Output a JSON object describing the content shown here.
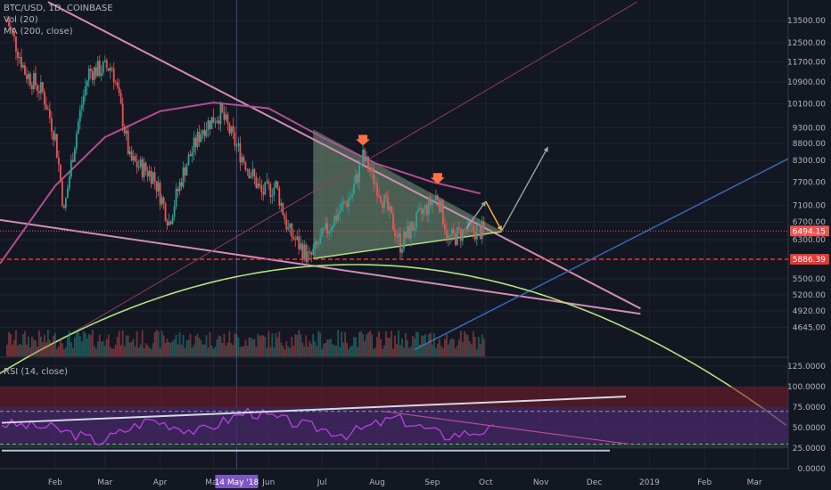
{
  "legend": {
    "symbol": "BTC/USD, 1D, COINBASE",
    "vol": "Vol (20)",
    "ma": "MA (200, close)",
    "rsi": "RSI (14, close)"
  },
  "cursor_date_label": "14 May '18",
  "price_axis": {
    "ticks": [
      13500,
      12500,
      11700,
      10900,
      10100,
      9300,
      8800,
      8300,
      7700,
      7100,
      6700,
      6300,
      5500,
      5200,
      4920,
      4645
    ],
    "tick_labels": [
      "13500.00",
      "12500.00",
      "11700.00",
      "10900.00",
      "10100.00",
      "9300.00",
      "8800.00",
      "8300.00",
      "7700.00",
      "7100.00",
      "6700.00",
      "6300.00",
      "5500.00",
      "5200.00",
      "4920.00",
      "4645.00"
    ],
    "current_price": "6494.15",
    "support_price": "5886.39",
    "colors": {
      "current": "#ef5350",
      "support": "#e53935"
    }
  },
  "rsi_axis": {
    "tick_labels": [
      "125.0000",
      "100.0000",
      "75.0000",
      "50.0000",
      "25.0000",
      "0.0000"
    ],
    "ticks": [
      125,
      100,
      75,
      50,
      25,
      0
    ]
  },
  "time_axis": {
    "labels": [
      "Feb",
      "Mar",
      "Apr",
      "May",
      "Jun",
      "Jul",
      "Aug",
      "Sep",
      "Oct",
      "Nov",
      "Dec",
      "2019",
      "Feb",
      "Mar"
    ]
  },
  "chart_data": {
    "type": "candlestick",
    "symbol": "BTC/USD",
    "interval": "1D",
    "x_range": [
      "2018-01-01",
      "2019-03-20"
    ],
    "y_log_scale": true,
    "ylim": [
      4200,
      14500
    ],
    "close_path": [
      [
        "2018-01-05",
        13500
      ],
      [
        "2018-01-15",
        11300
      ],
      [
        "2018-01-25",
        10500
      ],
      [
        "2018-02-01",
        9000
      ],
      [
        "2018-02-06",
        6900
      ],
      [
        "2018-02-15",
        9800
      ],
      [
        "2018-02-20",
        11300
      ],
      [
        "2018-03-05",
        11500
      ],
      [
        "2018-03-15",
        8300
      ],
      [
        "2018-03-28",
        7900
      ],
      [
        "2018-04-06",
        6700
      ],
      [
        "2018-04-15",
        8100
      ],
      [
        "2018-04-25",
        9300
      ],
      [
        "2018-05-05",
        9800
      ],
      [
        "2018-05-14",
        8700
      ],
      [
        "2018-05-28",
        7400
      ],
      [
        "2018-06-05",
        7600
      ],
      [
        "2018-06-12",
        6500
      ],
      [
        "2018-06-24",
        5886
      ],
      [
        "2018-07-05",
        6600
      ],
      [
        "2018-07-18",
        7400
      ],
      [
        "2018-07-24",
        8400
      ],
      [
        "2018-08-02",
        7500
      ],
      [
        "2018-08-14",
        6200
      ],
      [
        "2018-08-28",
        7000
      ],
      [
        "2018-09-04",
        7350
      ],
      [
        "2018-09-10",
        6300
      ],
      [
        "2018-09-20",
        6500
      ],
      [
        "2018-09-30",
        6494
      ]
    ],
    "moving_average_200": [
      [
        "2018-01-01",
        5800
      ],
      [
        "2018-02-01",
        7600
      ],
      [
        "2018-03-01",
        9000
      ],
      [
        "2018-04-01",
        9850
      ],
      [
        "2018-05-01",
        10150
      ],
      [
        "2018-06-01",
        9950
      ],
      [
        "2018-07-01",
        9000
      ],
      [
        "2018-08-01",
        8200
      ],
      [
        "2018-09-01",
        7700
      ],
      [
        "2018-09-28",
        7400
      ]
    ],
    "annotations": [
      {
        "type": "down-arrow",
        "date": "2018-07-24",
        "price": 8850,
        "color": "#ff7043"
      },
      {
        "type": "down-arrow",
        "date": "2018-09-04",
        "price": 7750,
        "color": "#ff7043"
      },
      {
        "type": "horizontal-line",
        "price": 5886.39,
        "color": "#e53935"
      }
    ],
    "rsi": {
      "upper_band": 70,
      "lower_band": 30,
      "values": [
        [
          0,
          55
        ],
        [
          10,
          50
        ],
        [
          20,
          33
        ],
        [
          30,
          60
        ],
        [
          40,
          45
        ],
        [
          50,
          70
        ],
        [
          60,
          55
        ],
        [
          70,
          42
        ],
        [
          80,
          62
        ],
        [
          90,
          40
        ],
        [
          100,
          48
        ]
      ]
    },
    "grid": true,
    "legend_position": "top-left"
  },
  "colors": {
    "background": "#131722",
    "grid": "#1f2433",
    "up": "#26a69a",
    "down": "#ef5350",
    "ma": "#b24e92",
    "curve": "#b4e07d",
    "resistance": "#d38db4",
    "blue_line": "#3a66b5",
    "triangle_fill": "#8fb58d"
  }
}
